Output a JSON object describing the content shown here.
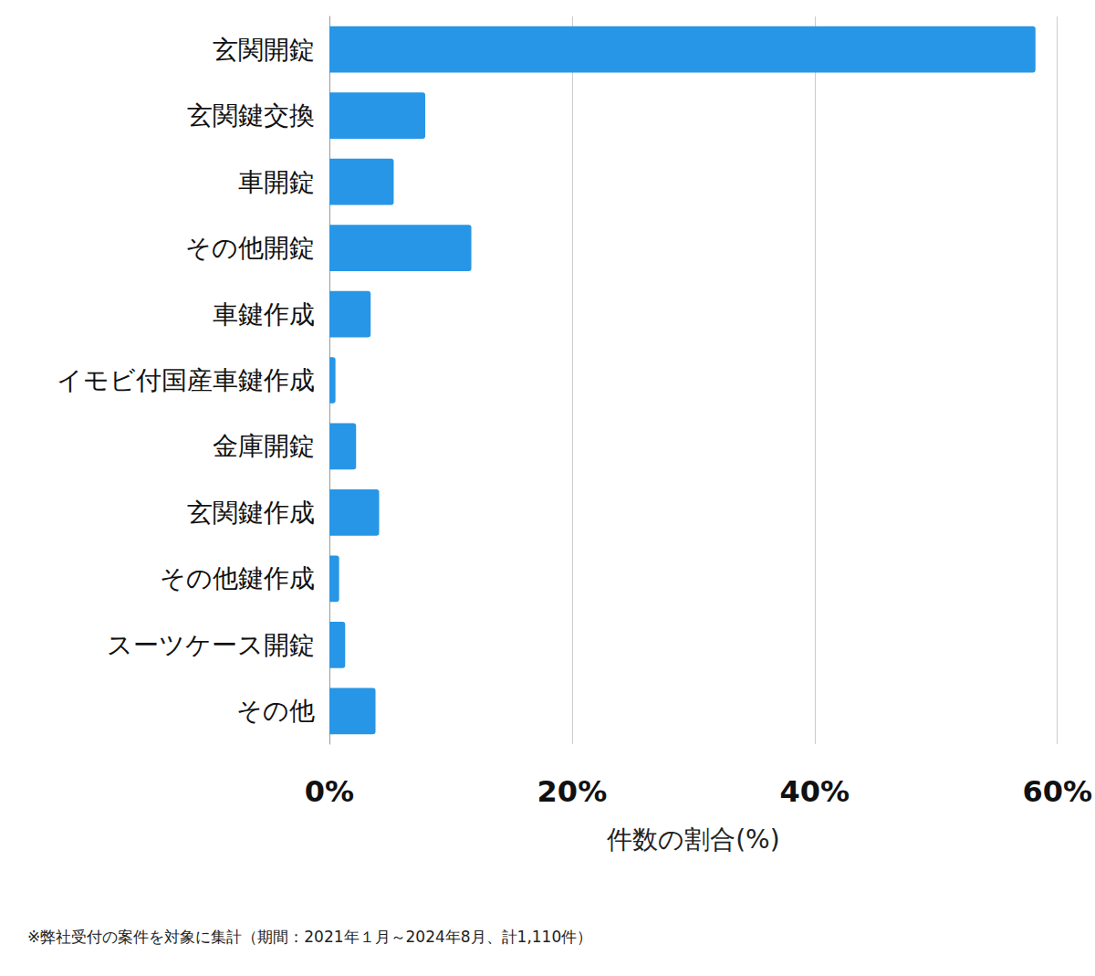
{
  "chart_data": {
    "type": "bar",
    "orientation": "horizontal",
    "categories": [
      "玄関開錠",
      "玄関鍵交換",
      "車開錠",
      "その他開錠",
      "車鍵作成",
      "イモビ付国産車鍵作成",
      "金庫開錠",
      "玄関鍵作成",
      "その他鍵作成",
      "スーツケース開錠",
      "その他"
    ],
    "values": [
      58.2,
      7.9,
      5.3,
      11.7,
      3.4,
      0.5,
      2.2,
      4.1,
      0.8,
      1.3,
      3.8
    ],
    "color": "#2796e6",
    "x_label": "件数の割合(%)",
    "xlim": [
      0,
      60
    ],
    "xticks": [
      {
        "value": 0,
        "label": "0%"
      },
      {
        "value": 20,
        "label": "20%"
      },
      {
        "value": 40,
        "label": "40%"
      },
      {
        "value": 60,
        "label": "60%"
      }
    ],
    "grid": true,
    "annotations": [
      "※弊社受付の案件を対象に集計（期間：2021年１月～2024年8月、計1,110件）"
    ]
  }
}
